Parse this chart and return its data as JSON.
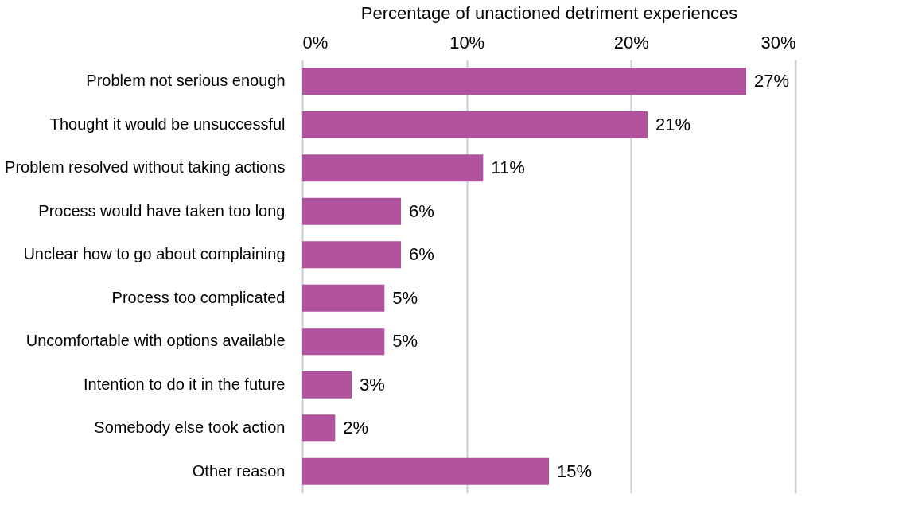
{
  "chart_data": {
    "type": "bar",
    "orientation": "horizontal",
    "xlabel": "Percentage of unactioned detriment experiences",
    "categories": [
      "Problem not serious enough",
      "Thought it would be unsuccessful",
      "Problem resolved without taking actions",
      "Process would have taken too long",
      "Unclear how to go about complaining",
      "Process too complicated",
      "Uncomfortable with options available",
      "Intention to do it in the future",
      "Somebody else took action",
      "Other reason"
    ],
    "values": [
      27,
      21,
      11,
      6,
      6,
      5,
      5,
      3,
      2,
      15
    ],
    "value_labels": [
      "27%",
      "21%",
      "11%",
      "6%",
      "6%",
      "5%",
      "5%",
      "3%",
      "2%",
      "15%"
    ],
    "color": "#b0529e",
    "xlim": [
      0,
      30
    ],
    "xticks": [
      {
        "value": 0,
        "label": "0%"
      },
      {
        "value": 10,
        "label": "10%"
      },
      {
        "value": 20,
        "label": "20%"
      },
      {
        "value": 30,
        "label": "30%"
      }
    ],
    "grid": "x"
  }
}
